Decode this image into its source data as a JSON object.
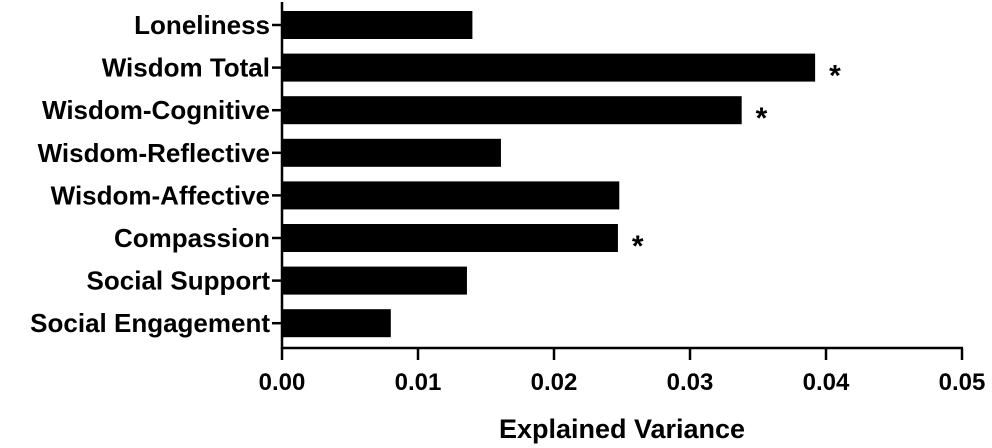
{
  "chart_data": {
    "type": "bar",
    "orientation": "horizontal",
    "categories": [
      "Loneliness",
      "Wisdom Total",
      "Wisdom-Cognitive",
      "Wisdom-Reflective",
      "Wisdom-Affective",
      "Compassion",
      "Social Support",
      "Social Engagement"
    ],
    "values": [
      0.014,
      0.0392,
      0.0338,
      0.0161,
      0.0248,
      0.0247,
      0.0136,
      0.008
    ],
    "significance": [
      "",
      "*",
      "*",
      "",
      "",
      "*",
      "",
      ""
    ],
    "xlabel": "Explained Variance",
    "ylabel": "",
    "title": "",
    "xlim": [
      0,
      0.05
    ],
    "xticks": [
      "0.00",
      "0.01",
      "0.02",
      "0.03",
      "0.04",
      "0.05"
    ],
    "bar_color": "#000000",
    "grid": false
  }
}
